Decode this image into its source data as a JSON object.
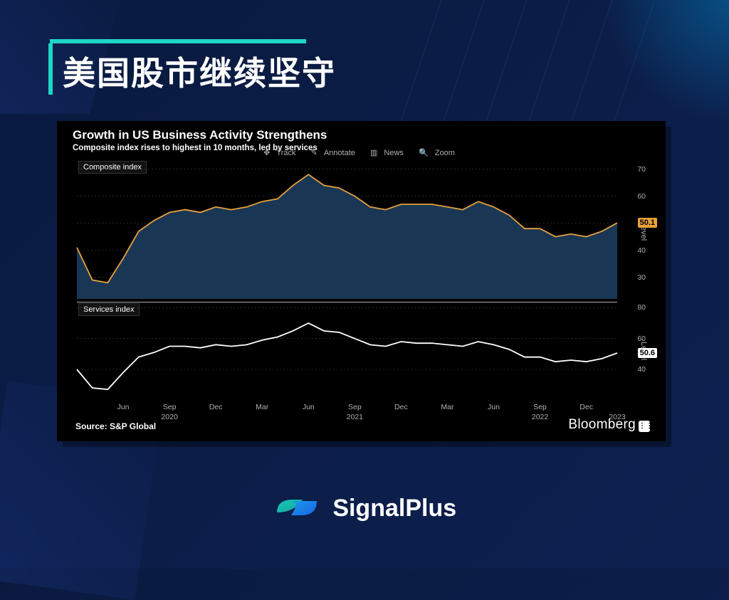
{
  "slide": {
    "title": "美国股市继续坚守",
    "accent_color": "#1ed6c6",
    "background_color": "#0a1a3f"
  },
  "chart": {
    "title": "Growth in US Business Activity Strengthens",
    "subtitle": "Composite index rises to highest in 10 months, led by services",
    "source": "Source: S&P Global",
    "attribution": "Bloomberg",
    "toolbar": {
      "track": "Track",
      "annotate": "Annotate",
      "news": "News",
      "zoom": "Zoom"
    },
    "background_color": "#000000",
    "grid_color": "#404040",
    "tick_color": "#b0b0b0",
    "x_axis": {
      "n_points": 36,
      "month_ticks": [
        {
          "idx": 3,
          "label": "Jun"
        },
        {
          "idx": 6,
          "label": "Sep"
        },
        {
          "idx": 9,
          "label": "Dec"
        },
        {
          "idx": 12,
          "label": "Mar"
        },
        {
          "idx": 15,
          "label": "Jun"
        },
        {
          "idx": 18,
          "label": "Sep"
        },
        {
          "idx": 21,
          "label": "Dec"
        },
        {
          "idx": 24,
          "label": "Mar"
        },
        {
          "idx": 27,
          "label": "Jun"
        },
        {
          "idx": 30,
          "label": "Sep"
        },
        {
          "idx": 33,
          "label": "Dec"
        }
      ],
      "year_ticks": [
        {
          "idx": 6,
          "label": "2020"
        },
        {
          "idx": 18,
          "label": "2021"
        },
        {
          "idx": 30,
          "label": "2022"
        },
        {
          "idx": 35,
          "label": "2023"
        }
      ]
    },
    "top_panel": {
      "legend": "Composite index",
      "legend_marker_color": "#e8a13a",
      "type": "area-line",
      "line_color": "#e8a13a",
      "fill_color": "#1a3a5a",
      "line_width": 1.8,
      "ylim": [
        22,
        72
      ],
      "yticks": [
        30,
        40,
        50,
        60,
        70
      ],
      "y_axis_label": "Level",
      "last_value_label": "50.1",
      "last_badge_bg": "#e8a13a",
      "last_badge_fg": "#000000",
      "values": [
        41,
        29,
        28,
        37,
        47,
        51,
        54,
        55,
        54,
        56,
        55,
        56,
        58,
        59,
        64,
        68,
        64,
        63,
        60,
        56,
        55,
        57,
        57,
        57,
        56,
        55,
        58,
        56,
        53,
        48,
        48,
        45,
        46,
        45,
        47,
        50.1
      ]
    },
    "bottom_panel": {
      "legend": "Services index",
      "legend_marker_color": "#ffffff",
      "type": "line",
      "line_color": "#ffffff",
      "line_width": 1.8,
      "ylim": [
        22,
        82
      ],
      "yticks": [
        40,
        60,
        80
      ],
      "y_axis_label": "Level",
      "last_value_label": "50.6",
      "last_badge_bg": "#ffffff",
      "last_badge_fg": "#000000",
      "values": [
        40,
        28,
        27,
        38,
        48,
        51,
        55,
        55,
        54,
        56,
        55,
        56,
        59,
        61,
        65,
        70,
        65,
        64,
        60,
        56,
        55,
        58,
        57,
        57,
        56,
        55,
        58,
        56,
        53,
        48,
        48,
        45,
        46,
        45,
        47,
        50.6
      ]
    }
  },
  "brand": {
    "name": "SignalPlus",
    "logo_color_a": "#18c8b8",
    "logo_color_b": "#1a63e8"
  }
}
